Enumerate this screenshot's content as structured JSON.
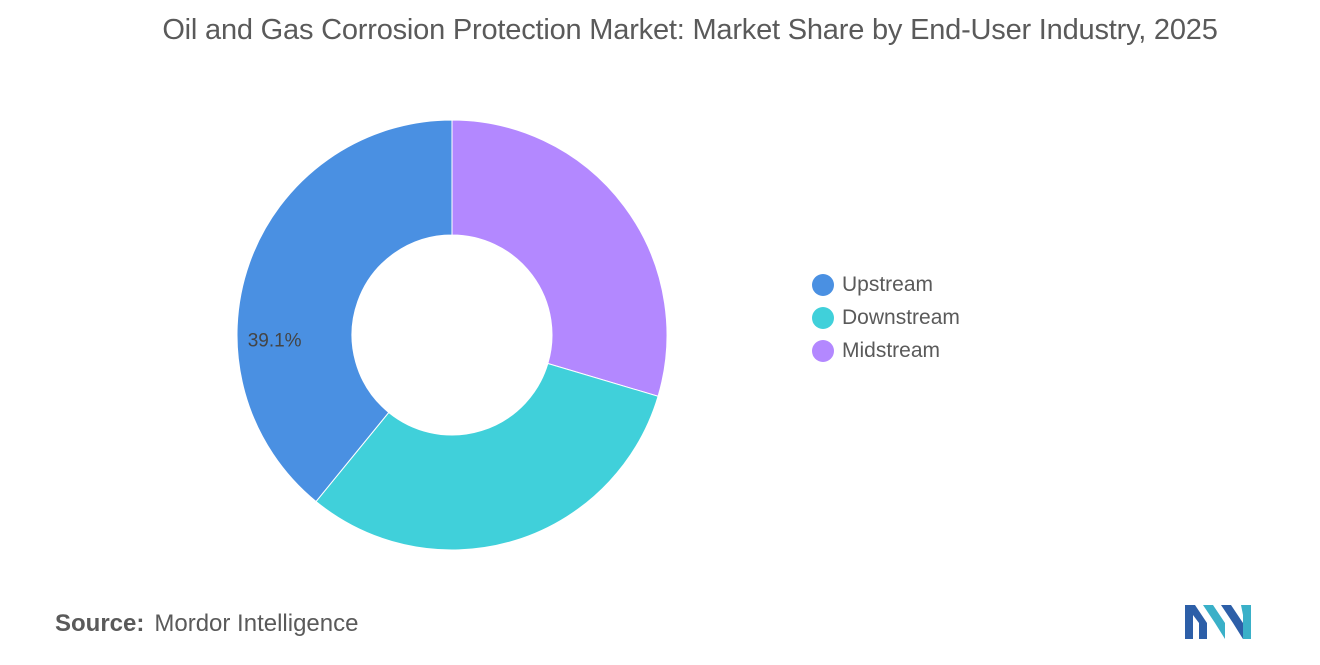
{
  "title": "Oil and Gas Corrosion Protection Market: Market Share by End-User Industry, 2025",
  "source": {
    "label": "Source:",
    "value": "Mordor Intelligence"
  },
  "chart_data": {
    "type": "pie",
    "donut": true,
    "title": "Oil and Gas Corrosion Protection Market: Market Share by End-User Industry, 2025",
    "legend_position": "right",
    "categories": [
      "Upstream",
      "Downstream",
      "Midstream"
    ],
    "values": [
      39.1,
      31.3,
      29.6
    ],
    "colors": [
      "#4a90e2",
      "#40d0da",
      "#b388ff"
    ],
    "data_labels": [
      "39.1%",
      "",
      ""
    ],
    "slice_order_clockwise_from_top": [
      "Midstream",
      "Downstream",
      "Upstream"
    ]
  }
}
